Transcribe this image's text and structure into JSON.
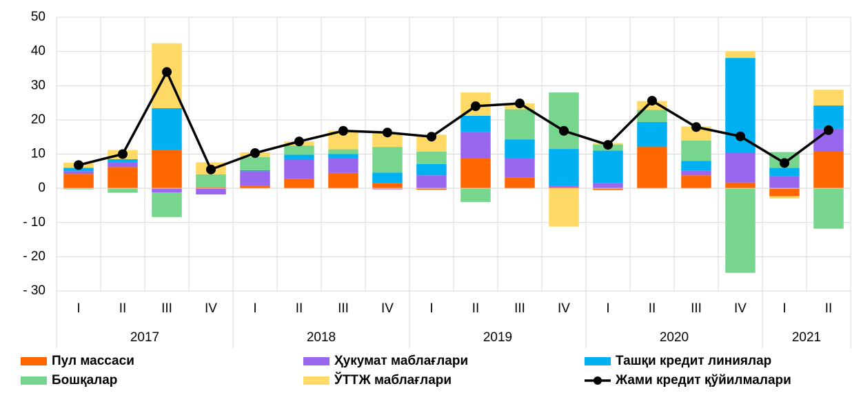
{
  "chart_data": {
    "type": "bar",
    "stacked": true,
    "categories": [
      "I",
      "II",
      "III",
      "IV",
      "I",
      "II",
      "III",
      "IV",
      "I",
      "II",
      "III",
      "IV",
      "I",
      "II",
      "III",
      "IV",
      "I",
      "II"
    ],
    "years": [
      "2017",
      "2018",
      "2019",
      "2020",
      "2021"
    ],
    "ylim": [
      -30,
      50
    ],
    "yticks": [
      {
        "value": -30,
        "label": "- 30"
      },
      {
        "value": -20,
        "label": "- 20"
      },
      {
        "value": -10,
        "label": "- 10"
      },
      0,
      10,
      20,
      30,
      40,
      50
    ],
    "grid": true,
    "series": [
      {
        "name": "Пул массаси",
        "color": "#ff6600",
        "values": [
          4.2,
          6.2,
          11.2,
          0.3,
          0.8,
          2.8,
          4.5,
          1.5,
          -0.4,
          8.8,
          3.2,
          0.3,
          -0.5,
          12.2,
          3.8,
          1.7,
          -2.3,
          10.8
        ]
      },
      {
        "name": "Ҳукумат маблағлари",
        "color": "#9966ee",
        "values": [
          0.8,
          1.3,
          -1.2,
          -1.8,
          4.2,
          5.7,
          4.2,
          -0.3,
          3.8,
          7.7,
          5.6,
          0.4,
          1.5,
          0,
          1.4,
          8.6,
          3.5,
          6.6
        ]
      },
      {
        "name": "Ташқи кредит линиялар",
        "color": "#00b0f0",
        "values": [
          1,
          1,
          12.2,
          0,
          0.3,
          1.3,
          1.3,
          3.1,
          3.3,
          4.7,
          5.5,
          10.8,
          9.5,
          7.2,
          2.8,
          27.8,
          2.5,
          6.8
        ]
      },
      {
        "name": "Бошқалар",
        "color": "#77d58d",
        "values": [
          -0.3,
          -1.3,
          -7.2,
          3.8,
          3.8,
          2.7,
          1.4,
          7.5,
          3.6,
          -4,
          8.8,
          16.5,
          1.8,
          3.5,
          6,
          -24.7,
          4.6,
          -11.8
        ]
      },
      {
        "name": "ЎТТЖ маблағлари",
        "color": "#ffd966",
        "values": [
          1.5,
          2.7,
          19,
          3.5,
          1.4,
          1.2,
          5.4,
          4.1,
          5,
          6.8,
          1.7,
          -11.2,
          0.4,
          2.6,
          4.1,
          2,
          -0.7,
          4.6
        ]
      },
      {
        "name": "Жами кредит қўйилмалари",
        "color": "#000000",
        "type": "line",
        "values": [
          6.8,
          10,
          34,
          5.5,
          10.3,
          13.7,
          16.8,
          16.3,
          15.1,
          24,
          24.8,
          16.8,
          12.7,
          25.6,
          17.9,
          15.2,
          7.4,
          17
        ]
      }
    ]
  }
}
